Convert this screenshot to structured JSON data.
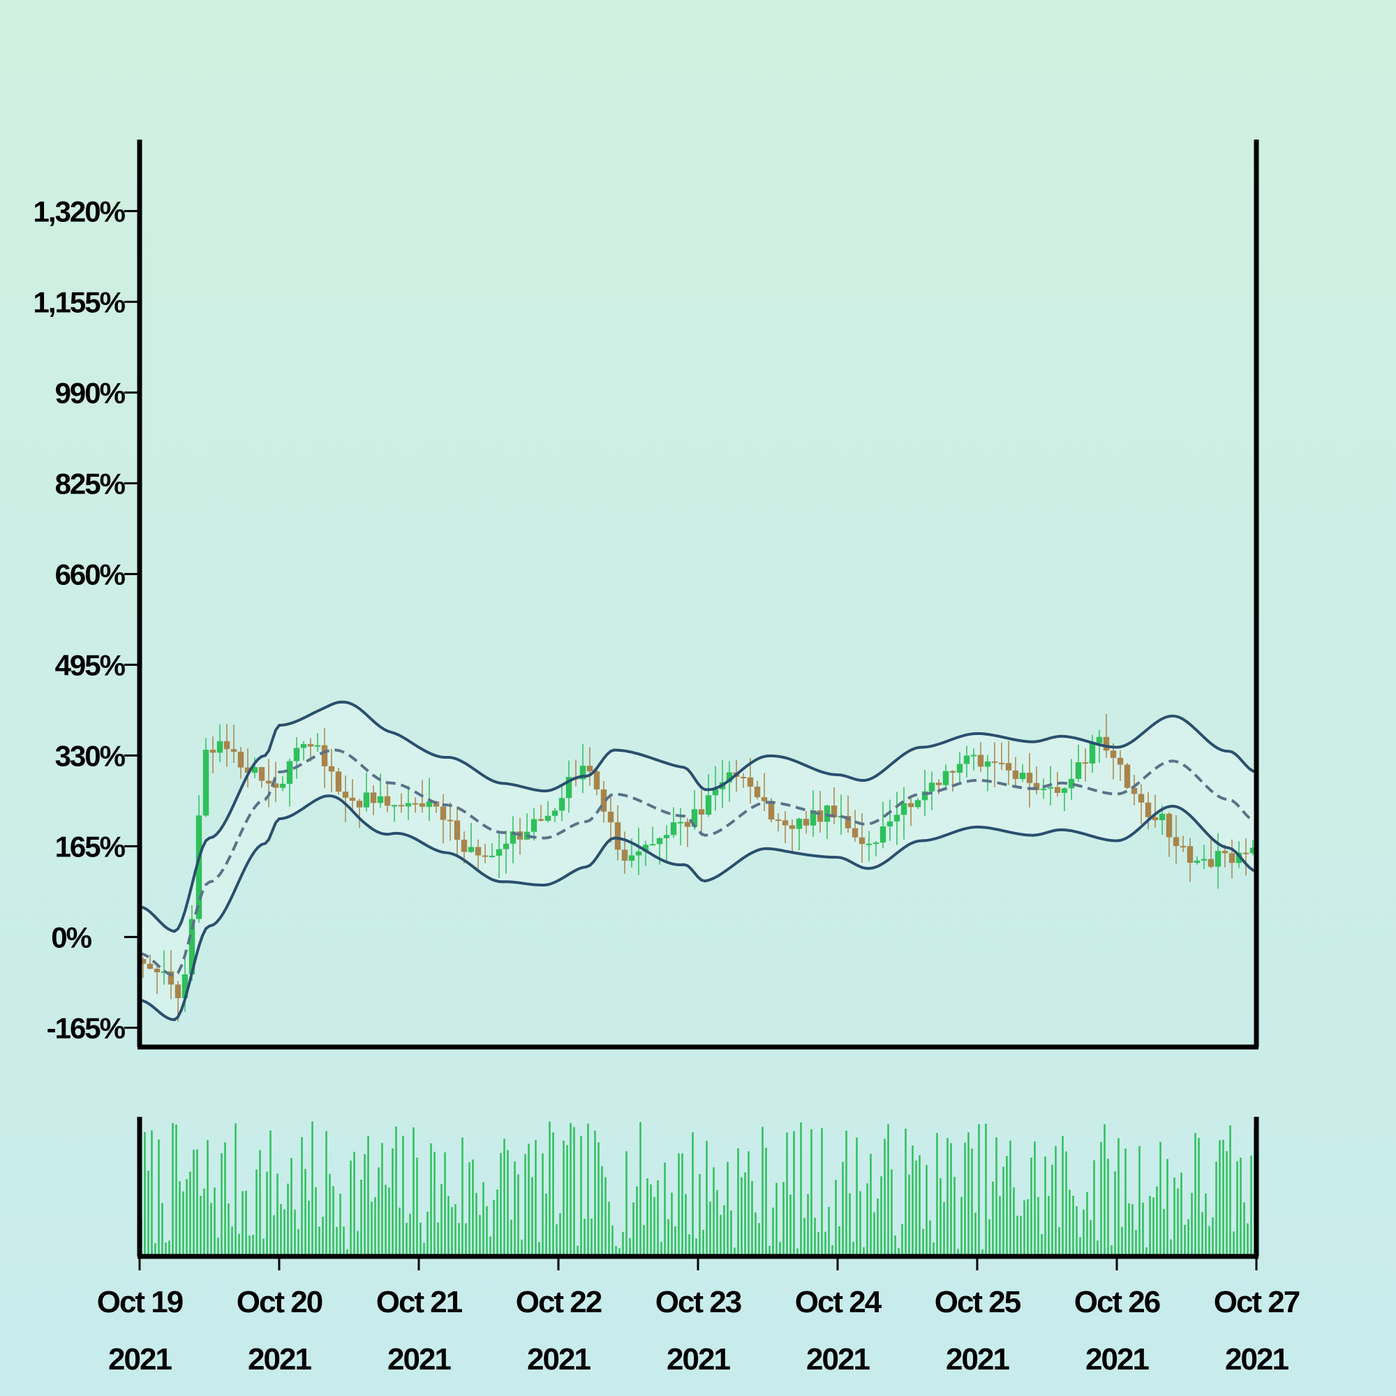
{
  "chart_data": {
    "type": "candlestick",
    "price_panel": {
      "ylim": [
        -200,
        1450
      ],
      "y_ticks": [
        -165,
        0,
        165,
        330,
        495,
        660,
        825,
        990,
        1155,
        1320
      ],
      "y_tick_labels": [
        "-165%",
        "0%",
        "165%",
        "330%",
        "495%",
        "660%",
        "825%",
        "990%",
        "1,155%",
        "1,320%"
      ],
      "grid": false,
      "anchors": {
        "close": [
          [
            0,
            -40
          ],
          [
            0.3,
            -100
          ],
          [
            0.5,
            350
          ],
          [
            1,
            280
          ],
          [
            1.2,
            360
          ],
          [
            1.5,
            250
          ],
          [
            2,
            240
          ],
          [
            2.5,
            140
          ],
          [
            2.8,
            200
          ],
          [
            3.2,
            300
          ],
          [
            3.5,
            140
          ],
          [
            3.9,
            210
          ],
          [
            4.3,
            300
          ],
          [
            4.6,
            200
          ],
          [
            5,
            230
          ],
          [
            5.2,
            170
          ],
          [
            5.5,
            240
          ],
          [
            5.9,
            320
          ],
          [
            6.1,
            320
          ],
          [
            6.5,
            260
          ],
          [
            6.9,
            350
          ],
          [
            7.2,
            230
          ],
          [
            7.6,
            140
          ],
          [
            8,
            150
          ]
        ],
        "sma": [
          [
            0,
            -30
          ],
          [
            0.25,
            -70
          ],
          [
            0.5,
            100
          ],
          [
            0.9,
            250
          ],
          [
            1,
            300
          ],
          [
            1.4,
            340
          ],
          [
            1.8,
            280
          ],
          [
            2.2,
            240
          ],
          [
            2.6,
            190
          ],
          [
            2.9,
            180
          ],
          [
            3.2,
            210
          ],
          [
            3.4,
            260
          ],
          [
            3.9,
            220
          ],
          [
            4.05,
            185
          ],
          [
            4.5,
            245
          ],
          [
            5,
            220
          ],
          [
            5.2,
            205
          ],
          [
            5.6,
            260
          ],
          [
            6,
            285
          ],
          [
            6.4,
            270
          ],
          [
            6.6,
            280
          ],
          [
            7,
            260
          ],
          [
            7.4,
            320
          ],
          [
            7.8,
            250
          ],
          [
            8,
            210
          ]
        ],
        "band_width": [
          [
            0,
            85
          ],
          [
            0.3,
            80
          ],
          [
            0.6,
            80
          ],
          [
            0.9,
            80
          ],
          [
            1,
            85
          ],
          [
            1.3,
            80
          ],
          [
            1.6,
            100
          ],
          [
            2,
            85
          ],
          [
            2.5,
            90
          ],
          [
            3,
            85
          ],
          [
            3.4,
            80
          ],
          [
            3.8,
            90
          ],
          [
            4.2,
            80
          ],
          [
            4.6,
            85
          ],
          [
            5,
            75
          ],
          [
            5.4,
            85
          ],
          [
            6,
            85
          ],
          [
            6.4,
            85
          ],
          [
            7,
            85
          ],
          [
            7.4,
            82
          ],
          [
            8,
            90
          ]
        ]
      },
      "seed": 42,
      "candles_per_day": 20
    },
    "volume_panel": {
      "bars_per_day": 40,
      "seed": 7
    },
    "x_labels": [
      {
        "line1": "Oct 19",
        "line2": "2021"
      },
      {
        "line1": "Oct 20",
        "line2": "2021"
      },
      {
        "line1": "Oct 21",
        "line2": "2021"
      },
      {
        "line1": "Oct 22",
        "line2": "2021"
      },
      {
        "line1": "Oct 23",
        "line2": "2021"
      },
      {
        "line1": "Oct 24",
        "line2": "2021"
      },
      {
        "line1": "Oct 25",
        "line2": "2021"
      },
      {
        "line1": "Oct 26",
        "line2": "2021"
      },
      {
        "line1": "Oct 27",
        "line2": "2021"
      }
    ],
    "xlim_days": [
      0,
      8
    ],
    "colors": {
      "up": "#2ec05a",
      "down": "#a8844a",
      "band": "#2a4f6e",
      "sma": "#5a7288",
      "band_fill": "#dcf4ee",
      "volume": "#2ec05a",
      "axis": "#000000"
    }
  }
}
